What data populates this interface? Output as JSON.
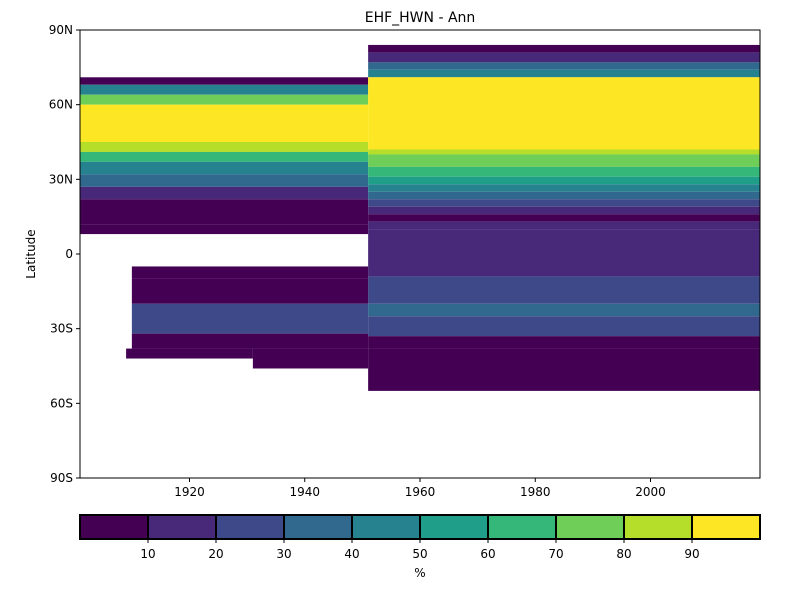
{
  "chart_data": {
    "type": "heatmap",
    "title": "EHF_HWN - Ann",
    "xlabel": "",
    "ylabel": "Latitude",
    "xlim": [
      1901,
      2019
    ],
    "ylim": [
      -90,
      90
    ],
    "x_ticks": [
      1920,
      1940,
      1960,
      1980,
      2000
    ],
    "y_ticks": [
      {
        "value": 90,
        "label": "90N"
      },
      {
        "value": 60,
        "label": "60N"
      },
      {
        "value": 30,
        "label": "30N"
      },
      {
        "value": 0,
        "label": "0"
      },
      {
        "value": -30,
        "label": "30S"
      },
      {
        "value": -60,
        "label": "60S"
      },
      {
        "value": -90,
        "label": "90S"
      }
    ],
    "colorbar": {
      "label": "%",
      "range": [
        0,
        100
      ],
      "ticks": [
        10,
        20,
        30,
        40,
        50,
        60,
        70,
        80,
        90
      ],
      "colors": [
        "#440154",
        "#482878",
        "#3e4989",
        "#31688e",
        "#26828e",
        "#1f9e89",
        "#35b779",
        "#6ece58",
        "#b5de2b",
        "#fde725"
      ]
    },
    "regions": [
      {
        "x": [
          1901,
          1951
        ],
        "lat": [
          68,
          71
        ],
        "value": 5
      },
      {
        "x": [
          1901,
          1951
        ],
        "lat": [
          64,
          68
        ],
        "value": 45
      },
      {
        "x": [
          1901,
          1951
        ],
        "lat": [
          60,
          64
        ],
        "value": 75
      },
      {
        "x": [
          1901,
          1951
        ],
        "lat": [
          45,
          60
        ],
        "value": 95
      },
      {
        "x": [
          1901,
          1951
        ],
        "lat": [
          41,
          45
        ],
        "value": 85
      },
      {
        "x": [
          1901,
          1951
        ],
        "lat": [
          37,
          41
        ],
        "value": 65
      },
      {
        "x": [
          1901,
          1951
        ],
        "lat": [
          32,
          37
        ],
        "value": 45
      },
      {
        "x": [
          1901,
          1951
        ],
        "lat": [
          27,
          32
        ],
        "value": 35
      },
      {
        "x": [
          1901,
          1951
        ],
        "lat": [
          22,
          27
        ],
        "value": 15
      },
      {
        "x": [
          1901,
          1951
        ],
        "lat": [
          12,
          22
        ],
        "value": 5
      },
      {
        "x": [
          1951,
          2019
        ],
        "lat": [
          81,
          84
        ],
        "value": 5
      },
      {
        "x": [
          1951,
          2019
        ],
        "lat": [
          77,
          81
        ],
        "value": 15
      },
      {
        "x": [
          1951,
          2019
        ],
        "lat": [
          74,
          77
        ],
        "value": 35
      },
      {
        "x": [
          1951,
          2019
        ],
        "lat": [
          71,
          74
        ],
        "value": 45
      },
      {
        "x": [
          1951,
          2019
        ],
        "lat": [
          42,
          71
        ],
        "value": 95
      },
      {
        "x": [
          1951,
          2019
        ],
        "lat": [
          40,
          42
        ],
        "value": 85
      },
      {
        "x": [
          1951,
          2019
        ],
        "lat": [
          35,
          40
        ],
        "value": 75
      },
      {
        "x": [
          1951,
          2019
        ],
        "lat": [
          31,
          35
        ],
        "value": 65
      },
      {
        "x": [
          1951,
          2019
        ],
        "lat": [
          28,
          31
        ],
        "value": 55
      },
      {
        "x": [
          1951,
          2019
        ],
        "lat": [
          25,
          28
        ],
        "value": 45
      },
      {
        "x": [
          1951,
          2019
        ],
        "lat": [
          22,
          25
        ],
        "value": 35
      },
      {
        "x": [
          1951,
          2019
        ],
        "lat": [
          19,
          22
        ],
        "value": 25
      },
      {
        "x": [
          1951,
          2019
        ],
        "lat": [
          16,
          19
        ],
        "value": 15
      },
      {
        "x": [
          1951,
          2019
        ],
        "lat": [
          13,
          16
        ],
        "value": 5
      },
      {
        "x": [
          1951,
          2019
        ],
        "lat": [
          10,
          13
        ],
        "value": 15
      },
      {
        "x": [
          1901,
          1951
        ],
        "lat": [
          8,
          12
        ],
        "value": 5
      },
      {
        "x": [
          1951,
          2019
        ],
        "lat": [
          -9,
          10
        ],
        "value": 15
      },
      {
        "x": [
          1951,
          2019
        ],
        "lat": [
          -20,
          -9
        ],
        "value": 25
      },
      {
        "x": [
          1951,
          2019
        ],
        "lat": [
          -25,
          -20
        ],
        "value": 35
      },
      {
        "x": [
          1951,
          2019
        ],
        "lat": [
          -33,
          -25
        ],
        "value": 25
      },
      {
        "x": [
          1951,
          2019
        ],
        "lat": [
          -38,
          -33
        ],
        "value": 5
      },
      {
        "x": [
          1951,
          2019
        ],
        "lat": [
          -55,
          -38
        ],
        "value": 5
      },
      {
        "x": [
          1910,
          1951
        ],
        "lat": [
          -10,
          -5
        ],
        "value": 5
      },
      {
        "x": [
          1910,
          1951
        ],
        "lat": [
          -20,
          -10
        ],
        "value": 5
      },
      {
        "x": [
          1910,
          1951
        ],
        "lat": [
          -32,
          -20
        ],
        "value": 25
      },
      {
        "x": [
          1910,
          1951
        ],
        "lat": [
          -38,
          -32
        ],
        "value": 5
      },
      {
        "x": [
          1909,
          1931
        ],
        "lat": [
          -42,
          -38
        ],
        "value": 5
      },
      {
        "x": [
          1931,
          1951
        ],
        "lat": [
          -46,
          -38
        ],
        "value": 5
      }
    ]
  }
}
